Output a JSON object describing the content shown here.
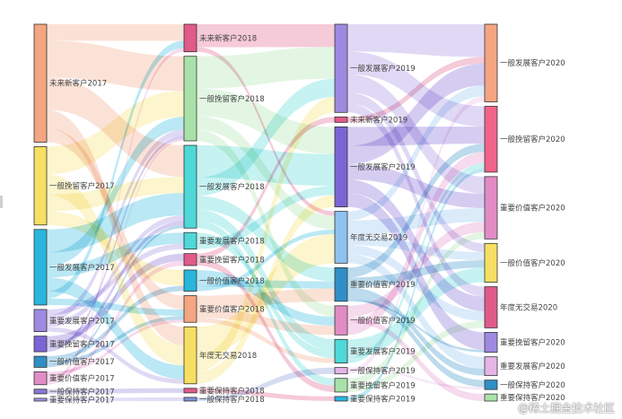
{
  "watermark": "@稀土掘金技术社区",
  "chart_data": {
    "type": "sankey",
    "columns": [
      {
        "nodes": [
          {
            "name": "未来新客户2017",
            "value": 128,
            "color": "#f4a582"
          },
          {
            "name": "一般挽留客户2017",
            "value": 85,
            "color": "#f6df63"
          },
          {
            "name": "一般发展客户2017",
            "value": 82,
            "color": "#29b6dc"
          },
          {
            "name": "重要发展客户2017",
            "value": 24,
            "color": "#9e8ae0"
          },
          {
            "name": "重要挽留客户2017",
            "value": 17,
            "color": "#7b65d4"
          },
          {
            "name": "一般价值客户2017",
            "value": 12,
            "color": "#2f8fc6"
          },
          {
            "name": "重要价值客户2017",
            "value": 14,
            "color": "#e28cc6"
          },
          {
            "name": "一般保持客户2017",
            "value": 5,
            "color": "#8a78d8"
          },
          {
            "name": "重要保持客户2017",
            "value": 3,
            "color": "#a797e6"
          }
        ]
      },
      {
        "nodes": [
          {
            "name": "未来新客户2018",
            "value": 30,
            "color": "#e05a8a"
          },
          {
            "name": "一般挽留客户2018",
            "value": 92,
            "color": "#a9e2a9"
          },
          {
            "name": "一般发展客户2018",
            "value": 90,
            "color": "#4fd8d8"
          },
          {
            "name": "重要发展客户2018",
            "value": 18,
            "color": "#4fd8d8"
          },
          {
            "name": "重要挽留客户2018",
            "value": 13,
            "color": "#e05a8a"
          },
          {
            "name": "一般价值客户2018",
            "value": 23,
            "color": "#29b6dc"
          },
          {
            "name": "重要价值客户2018",
            "value": 29,
            "color": "#f4a582"
          },
          {
            "name": "年度无交易2018",
            "value": 62,
            "color": "#f6df63"
          },
          {
            "name": "重要保持客户2018",
            "value": 5,
            "color": "#e05a8a"
          },
          {
            "name": "一般保持客户2018",
            "value": 4,
            "color": "#7b93d6"
          }
        ]
      },
      {
        "nodes": [
          {
            "name": "一般发展客户2019",
            "value": 97,
            "color": "#9e8ae0"
          },
          {
            "name": "未来新客户2019",
            "value": 6,
            "color": "#e05a8a"
          },
          {
            "name": "一般发展客户2019",
            "value": 88,
            "color": "#7b65d4"
          },
          {
            "name": "年度无交易2019",
            "value": 57,
            "color": "#8ec2f0"
          },
          {
            "name": "重要价值客户2019",
            "value": 37,
            "color": "#2f8fc6"
          },
          {
            "name": "一般价值客户2019",
            "value": 32,
            "color": "#e28cc6"
          },
          {
            "name": "重要发展客户2019",
            "value": 26,
            "color": "#4fd8d8"
          },
          {
            "name": "一般保持客户2019",
            "value": 7,
            "color": "#e5b5e5"
          },
          {
            "name": "重要挽留客户2019",
            "value": 15,
            "color": "#a9e2a9"
          },
          {
            "name": "重要保持客户2019",
            "value": 5,
            "color": "#29b6dc"
          }
        ]
      },
      {
        "nodes": [
          {
            "name": "一般发展客户2020",
            "value": 66,
            "color": "#f4a582"
          },
          {
            "name": "一般挽留客户2020",
            "value": 56,
            "color": "#f0648a"
          },
          {
            "name": "重要价值客户2020",
            "value": 53,
            "color": "#e28cc6"
          },
          {
            "name": "一般价值客户2020",
            "value": 33,
            "color": "#f6df63"
          },
          {
            "name": "年度无交易2020",
            "value": 35,
            "color": "#e05a8a"
          },
          {
            "name": "重要挽留客户2020",
            "value": 17,
            "color": "#9e8ae0"
          },
          {
            "name": "重要发展客户2020",
            "value": 16,
            "color": "#e5b5e5"
          },
          {
            "name": "一般保持客户2020",
            "value": 8,
            "color": "#2f8fc6"
          },
          {
            "name": "重要保持客户2020",
            "value": 6,
            "color": "#a9e2a9"
          }
        ]
      }
    ],
    "links": [
      {
        "source": [
          0,
          0
        ],
        "target": [
          1,
          0
        ],
        "value": 18
      },
      {
        "source": [
          0,
          0
        ],
        "target": [
          1,
          1
        ],
        "value": 40
      },
      {
        "source": [
          0,
          0
        ],
        "target": [
          1,
          2
        ],
        "value": 35
      },
      {
        "source": [
          0,
          0
        ],
        "target": [
          1,
          7
        ],
        "value": 20
      },
      {
        "source": [
          0,
          0
        ],
        "target": [
          1,
          6
        ],
        "value": 15
      },
      {
        "source": [
          0,
          1
        ],
        "target": [
          1,
          1
        ],
        "value": 30
      },
      {
        "source": [
          0,
          1
        ],
        "target": [
          1,
          7
        ],
        "value": 22
      },
      {
        "source": [
          0,
          1
        ],
        "target": [
          1,
          2
        ],
        "value": 18
      },
      {
        "source": [
          0,
          1
        ],
        "target": [
          1,
          5
        ],
        "value": 15
      },
      {
        "source": [
          0,
          2
        ],
        "target": [
          1,
          2
        ],
        "value": 25
      },
      {
        "source": [
          0,
          2
        ],
        "target": [
          1,
          1
        ],
        "value": 15
      },
      {
        "source": [
          0,
          2
        ],
        "target": [
          1,
          3
        ],
        "value": 12
      },
      {
        "source": [
          0,
          2
        ],
        "target": [
          1,
          7
        ],
        "value": 15
      },
      {
        "source": [
          0,
          2
        ],
        "target": [
          1,
          0
        ],
        "value": 8
      },
      {
        "source": [
          0,
          2
        ],
        "target": [
          1,
          6
        ],
        "value": 7
      },
      {
        "source": [
          0,
          3
        ],
        "target": [
          1,
          3
        ],
        "value": 6
      },
      {
        "source": [
          0,
          3
        ],
        "target": [
          1,
          1
        ],
        "value": 7
      },
      {
        "source": [
          0,
          3
        ],
        "target": [
          1,
          2
        ],
        "value": 6
      },
      {
        "source": [
          0,
          3
        ],
        "target": [
          1,
          7
        ],
        "value": 5
      },
      {
        "source": [
          0,
          4
        ],
        "target": [
          1,
          4
        ],
        "value": 8
      },
      {
        "source": [
          0,
          4
        ],
        "target": [
          1,
          2
        ],
        "value": 5
      },
      {
        "source": [
          0,
          4
        ],
        "target": [
          1,
          1
        ],
        "value": 4
      },
      {
        "source": [
          0,
          5
        ],
        "target": [
          1,
          5
        ],
        "value": 5
      },
      {
        "source": [
          0,
          5
        ],
        "target": [
          1,
          6
        ],
        "value": 4
      },
      {
        "source": [
          0,
          5
        ],
        "target": [
          1,
          2
        ],
        "value": 3
      },
      {
        "source": [
          0,
          6
        ],
        "target": [
          1,
          6
        ],
        "value": 3
      },
      {
        "source": [
          0,
          6
        ],
        "target": [
          1,
          4
        ],
        "value": 5
      },
      {
        "source": [
          0,
          6
        ],
        "target": [
          1,
          0
        ],
        "value": 4
      },
      {
        "source": [
          0,
          6
        ],
        "target": [
          1,
          1
        ],
        "value": 2
      },
      {
        "source": [
          0,
          7
        ],
        "target": [
          1,
          8
        ],
        "value": 5
      },
      {
        "source": [
          0,
          8
        ],
        "target": [
          1,
          9
        ],
        "value": 3
      },
      {
        "source": [
          1,
          0
        ],
        "target": [
          2,
          0
        ],
        "value": 25
      },
      {
        "source": [
          1,
          0
        ],
        "target": [
          2,
          3
        ],
        "value": 5
      },
      {
        "source": [
          1,
          1
        ],
        "target": [
          2,
          0
        ],
        "value": 35
      },
      {
        "source": [
          1,
          1
        ],
        "target": [
          2,
          2
        ],
        "value": 30
      },
      {
        "source": [
          1,
          1
        ],
        "target": [
          2,
          3
        ],
        "value": 15
      },
      {
        "source": [
          1,
          1
        ],
        "target": [
          2,
          5
        ],
        "value": 12
      },
      {
        "source": [
          1,
          2
        ],
        "target": [
          2,
          2
        ],
        "value": 35
      },
      {
        "source": [
          1,
          2
        ],
        "target": [
          2,
          0
        ],
        "value": 20
      },
      {
        "source": [
          1,
          2
        ],
        "target": [
          2,
          4
        ],
        "value": 15
      },
      {
        "source": [
          1,
          2
        ],
        "target": [
          2,
          6
        ],
        "value": 12
      },
      {
        "source": [
          1,
          2
        ],
        "target": [
          2,
          8
        ],
        "value": 8
      },
      {
        "source": [
          1,
          3
        ],
        "target": [
          2,
          6
        ],
        "value": 8
      },
      {
        "source": [
          1,
          3
        ],
        "target": [
          2,
          2
        ],
        "value": 10
      },
      {
        "source": [
          1,
          4
        ],
        "target": [
          2,
          1
        ],
        "value": 6
      },
      {
        "source": [
          1,
          4
        ],
        "target": [
          2,
          8
        ],
        "value": 7
      },
      {
        "source": [
          1,
          5
        ],
        "target": [
          2,
          5
        ],
        "value": 10
      },
      {
        "source": [
          1,
          5
        ],
        "target": [
          2,
          4
        ],
        "value": 8
      },
      {
        "source": [
          1,
          5
        ],
        "target": [
          2,
          3
        ],
        "value": 5
      },
      {
        "source": [
          1,
          6
        ],
        "target": [
          2,
          4
        ],
        "value": 14
      },
      {
        "source": [
          1,
          6
        ],
        "target": [
          2,
          5
        ],
        "value": 10
      },
      {
        "source": [
          1,
          6
        ],
        "target": [
          2,
          6
        ],
        "value": 5
      },
      {
        "source": [
          1,
          7
        ],
        "target": [
          2,
          3
        ],
        "value": 32
      },
      {
        "source": [
          1,
          7
        ],
        "target": [
          2,
          0
        ],
        "value": 17
      },
      {
        "source": [
          1,
          7
        ],
        "target": [
          2,
          2
        ],
        "value": 13
      },
      {
        "source": [
          1,
          8
        ],
        "target": [
          2,
          9
        ],
        "value": 5
      },
      {
        "source": [
          1,
          9
        ],
        "target": [
          2,
          7
        ],
        "value": 4
      },
      {
        "source": [
          2,
          0
        ],
        "target": [
          3,
          0
        ],
        "value": 30
      },
      {
        "source": [
          2,
          0
        ],
        "target": [
          3,
          1
        ],
        "value": 25
      },
      {
        "source": [
          2,
          0
        ],
        "target": [
          3,
          2
        ],
        "value": 20
      },
      {
        "source": [
          2,
          0
        ],
        "target": [
          3,
          3
        ],
        "value": 12
      },
      {
        "source": [
          2,
          0
        ],
        "target": [
          3,
          4
        ],
        "value": 10
      },
      {
        "source": [
          2,
          1
        ],
        "target": [
          3,
          0
        ],
        "value": 6
      },
      {
        "source": [
          2,
          2
        ],
        "target": [
          3,
          1
        ],
        "value": 21
      },
      {
        "source": [
          2,
          2
        ],
        "target": [
          3,
          0
        ],
        "value": 20
      },
      {
        "source": [
          2,
          2
        ],
        "target": [
          3,
          2
        ],
        "value": 17
      },
      {
        "source": [
          2,
          2
        ],
        "target": [
          3,
          4
        ],
        "value": 15
      },
      {
        "source": [
          2,
          2
        ],
        "target": [
          3,
          5
        ],
        "value": 15
      },
      {
        "source": [
          2,
          3
        ],
        "target": [
          3,
          0
        ],
        "value": 10
      },
      {
        "source": [
          2,
          3
        ],
        "target": [
          3,
          2
        ],
        "value": 16
      },
      {
        "source": [
          2,
          3
        ],
        "target": [
          3,
          3
        ],
        "value": 11
      },
      {
        "source": [
          2,
          3
        ],
        "target": [
          3,
          4
        ],
        "value": 10
      },
      {
        "source": [
          2,
          3
        ],
        "target": [
          3,
          6
        ],
        "value": 10
      },
      {
        "source": [
          2,
          4
        ],
        "target": [
          3,
          1
        ],
        "value": 10
      },
      {
        "source": [
          2,
          4
        ],
        "target": [
          3,
          3
        ],
        "value": 10
      },
      {
        "source": [
          2,
          4
        ],
        "target": [
          3,
          6
        ],
        "value": 6
      },
      {
        "source": [
          2,
          4
        ],
        "target": [
          3,
          7
        ],
        "value": 6
      },
      {
        "source": [
          2,
          4
        ],
        "target": [
          3,
          5
        ],
        "value": 2
      },
      {
        "source": [
          2,
          5
        ],
        "target": [
          3,
          2
        ],
        "value": 12
      },
      {
        "source": [
          2,
          5
        ],
        "target": [
          3,
          8
        ],
        "value": 6
      },
      {
        "source": [
          2,
          5
        ],
        "target": [
          3,
          1
        ],
        "value": 14
      },
      {
        "source": [
          2,
          6
        ],
        "target": [
          3,
          3
        ],
        "value": 20
      },
      {
        "source": [
          2,
          6
        ],
        "target": [
          3,
          1
        ],
        "value": 6
      },
      {
        "source": [
          2,
          7
        ],
        "target": [
          3,
          7
        ],
        "value": 2
      },
      {
        "source": [
          2,
          7
        ],
        "target": [
          3,
          0
        ],
        "value": 5
      },
      {
        "source": [
          2,
          8
        ],
        "target": [
          3,
          2
        ],
        "value": 8
      },
      {
        "source": [
          2,
          8
        ],
        "target": [
          3,
          4
        ],
        "value": 7
      },
      {
        "source": [
          2,
          9
        ],
        "target": [
          3,
          1
        ],
        "value": 5
      }
    ]
  }
}
